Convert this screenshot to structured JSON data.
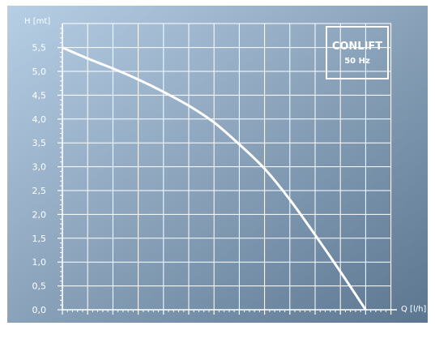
{
  "colors": {
    "background_top_left": "#b7cfe5",
    "background_bottom_right": "#5c7690",
    "grid": "#ffffff",
    "curve": "#ffffff",
    "text": "#ffffff"
  },
  "chart_data": {
    "type": "line",
    "title": "CONLIFT",
    "subtitle": "50 Hz",
    "xlabel": "Q [l/h]",
    "ylabel": "H [mt]",
    "xlim": [
      0,
      650
    ],
    "ylim": [
      0,
      5.5
    ],
    "x_ticks": [
      0,
      50,
      100,
      150,
      200,
      250,
      300,
      350,
      400,
      450,
      500,
      550,
      600,
      650
    ],
    "y_tick_labels": [
      "0,0",
      "0,5",
      "1,0",
      "1,5",
      "2,0",
      "2,5",
      "3,0",
      "3,5",
      "4,0",
      "4,5",
      "5,0",
      "5,5"
    ],
    "grid": true,
    "legend": "none",
    "series": [
      {
        "x": [
          0,
          50,
          100,
          150,
          200,
          250,
          300,
          350,
          400,
          450,
          500,
          550,
          600
        ],
        "y": [
          5.5,
          5.27,
          5.06,
          4.83,
          4.57,
          4.28,
          3.93,
          3.47,
          2.96,
          2.31,
          1.57,
          0.8,
          0.0
        ]
      }
    ]
  }
}
